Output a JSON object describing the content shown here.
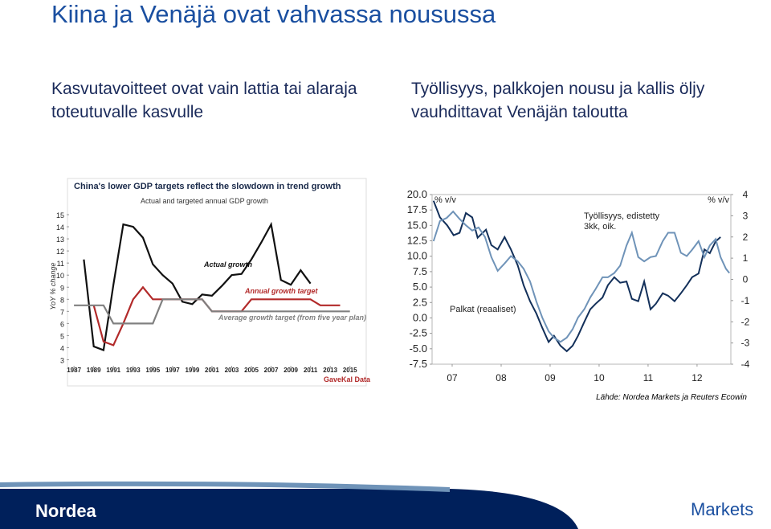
{
  "slide": {
    "title": "Kiina ja Venäjä ovat vahvassa nousussa",
    "left_text": [
      "Kasvutavoitteet ovat vain lattia tai alaraja",
      "toteutuvalle kasvulle"
    ],
    "right_text": [
      "Työllisyys, palkkojen nousu ja kallis öljy",
      "vauhdittavat Venäjän taloutta"
    ],
    "source": "Lähde: Nordea Markets ja Reuters Ecowin",
    "footer_left": "Nordea",
    "footer_right": "Markets"
  },
  "chart_data": [
    {
      "type": "line",
      "title": "China's lower GDP targets reflect the slowdown in trend growth",
      "subtitle": "Actual and targeted annual GDP growth",
      "ylabel": "YoY % change",
      "source": "GaveKal Data",
      "xlim": [
        1986.5,
        2016
      ],
      "ylim": [
        2.5,
        15.6
      ],
      "xticks": [
        1987,
        1989,
        1991,
        1993,
        1995,
        1997,
        1999,
        2001,
        2003,
        2005,
        2007,
        2009,
        2011,
        2013,
        2015
      ],
      "yticks": [
        3,
        4,
        5,
        6,
        7,
        8,
        9,
        10,
        11,
        12,
        13,
        14,
        15
      ],
      "series": [
        {
          "name": "Actual growth",
          "color": "#111111",
          "x": [
            1988,
            1989,
            1990,
            1991,
            1992,
            1993,
            1994,
            1995,
            1996,
            1997,
            1998,
            1999,
            2000,
            2001,
            2002,
            2003,
            2004,
            2005,
            2006,
            2007,
            2008,
            2009,
            2010,
            2011
          ],
          "values": [
            11.3,
            4.1,
            3.8,
            9.2,
            14.2,
            14.0,
            13.1,
            10.9,
            10.0,
            9.3,
            7.8,
            7.6,
            8.4,
            8.3,
            9.1,
            10.0,
            10.1,
            11.3,
            12.7,
            14.2,
            9.6,
            9.2,
            10.4,
            9.3
          ]
        },
        {
          "name": "Annual growth target",
          "color": "#b22a2a",
          "x": [
            1989,
            1990,
            1991,
            1992,
            1993,
            1994,
            1995,
            1996,
            1997,
            1998,
            1999,
            2000,
            2001,
            2002,
            2003,
            2004,
            2005,
            2006,
            2007,
            2008,
            2009,
            2010,
            2011,
            2012,
            2013,
            2014
          ],
          "values": [
            7.5,
            4.5,
            4.2,
            6,
            8,
            9,
            8,
            8,
            8,
            8,
            8,
            8,
            7,
            7,
            7,
            7,
            8,
            8,
            8,
            8,
            8,
            8,
            8,
            7.5,
            7.5,
            7.5
          ]
        },
        {
          "name": "Average growth target (from five year plan)",
          "color": "#808080",
          "x": [
            1987,
            1988,
            1989,
            1990,
            1991,
            1992,
            1993,
            1994,
            1995,
            1996,
            1997,
            1998,
            1999,
            2000,
            2001,
            2002,
            2003,
            2004,
            2005,
            2006,
            2007,
            2008,
            2009,
            2010,
            2011,
            2012,
            2013,
            2014,
            2015
          ],
          "values": [
            7.5,
            7.5,
            7.5,
            7.5,
            6,
            6,
            6,
            6,
            6,
            8,
            8,
            8,
            8,
            8,
            7,
            7,
            7,
            7,
            7,
            7,
            7,
            7,
            7,
            7,
            7,
            7,
            7,
            7,
            7
          ]
        }
      ]
    },
    {
      "type": "line",
      "ylabel": "% v/v",
      "y2label": "% v/v",
      "xlim": [
        2006.59,
        2012.69
      ],
      "ylim": [
        -7.5,
        20
      ],
      "y2lim": [
        -4,
        4
      ],
      "xticks": [
        {
          "value": 2007,
          "label": "07"
        },
        {
          "value": 2008,
          "label": "08"
        },
        {
          "value": 2009,
          "label": "09"
        },
        {
          "value": 2010,
          "label": "10"
        },
        {
          "value": 2011,
          "label": "11"
        },
        {
          "value": 2012,
          "label": "12"
        }
      ],
      "yticks": [
        {
          "value": 20,
          "label": "20.0"
        },
        17.5,
        {
          "value": 15,
          "label": "15.0"
        },
        12.5,
        {
          "value": 10,
          "label": "10.0"
        },
        7.5,
        {
          "value": 5,
          "label": "5.0"
        },
        2.5,
        {
          "value": 0,
          "label": "0.0"
        },
        -2.5,
        {
          "value": -5,
          "label": "-5.0"
        },
        -7.5
      ],
      "y2ticks": [
        4,
        3,
        2,
        1,
        0,
        -1,
        -2,
        -3,
        -4
      ],
      "series": [
        {
          "name": "Palkat (reaaliset)",
          "color": "#13305a",
          "x": [
            2006.62,
            2006.75,
            2006.9,
            2007.03,
            2007.15,
            2007.28,
            2007.41,
            2007.52,
            2007.69,
            2007.8,
            2007.93,
            2008.07,
            2008.2,
            2008.34,
            2008.46,
            2008.59,
            2008.72,
            2008.84,
            2008.97,
            2009.08,
            2009.21,
            2009.34,
            2009.46,
            2009.57,
            2009.7,
            2009.82,
            2009.93,
            2010.07,
            2010.18,
            2010.31,
            2010.43,
            2010.56,
            2010.67,
            2010.8,
            2010.92,
            2011.05,
            2011.16,
            2011.3,
            2011.41,
            2011.54,
            2011.67,
            2011.79,
            2011.9,
            2012.03,
            2012.15,
            2012.26,
            2012.38,
            2012.48
          ],
          "values": [
            19,
            16.3,
            15,
            13.4,
            13.8,
            17,
            16.3,
            13,
            14.3,
            11.8,
            11.1,
            13.1,
            11.1,
            8.5,
            5.3,
            2.7,
            0.7,
            -1.6,
            -3.9,
            -2.9,
            -4.5,
            -5.4,
            -4.5,
            -2.9,
            -0.6,
            1.4,
            2.3,
            3.3,
            5.3,
            6.6,
            5.7,
            5.9,
            3.1,
            2.7,
            5.9,
            1.4,
            2.3,
            4.0,
            3.6,
            2.7,
            4.0,
            5.3,
            6.6,
            7.2,
            11.1,
            10.5,
            12.4,
            13.1
          ]
        },
        {
          "name": "Työllisyys, edistetty 3kk, oik.",
          "color": "#6f93b8",
          "axis": "y2",
          "x": [
            2006.62,
            2006.75,
            2006.89,
            2007.02,
            2007.15,
            2007.28,
            2007.41,
            2007.54,
            2007.67,
            2007.8,
            2007.93,
            2008.07,
            2008.2,
            2008.34,
            2008.46,
            2008.59,
            2008.72,
            2008.84,
            2008.97,
            2009.08,
            2009.21,
            2009.34,
            2009.46,
            2009.57,
            2009.7,
            2009.82,
            2009.93,
            2010.07,
            2010.18,
            2010.31,
            2010.43,
            2010.56,
            2010.67,
            2010.8,
            2010.92,
            2011.05,
            2011.16,
            2011.3,
            2011.41,
            2011.54,
            2011.67,
            2011.79,
            2011.9,
            2012.03,
            2012.15,
            2012.26,
            2012.38,
            2012.48,
            2012.59,
            2012.66
          ],
          "values": [
            1.8,
            2.75,
            2.9,
            3.2,
            2.85,
            2.55,
            2.3,
            2.45,
            2.0,
            1.05,
            0.4,
            0.75,
            1.1,
            0.85,
            0.5,
            -0.1,
            -1.05,
            -1.8,
            -2.45,
            -2.75,
            -2.95,
            -2.75,
            -2.35,
            -1.8,
            -1.4,
            -0.85,
            -0.45,
            0.1,
            0.1,
            0.3,
            0.65,
            1.6,
            2.2,
            1.05,
            0.85,
            1.05,
            1.1,
            1.8,
            2.2,
            2.2,
            1.25,
            1.1,
            1.4,
            1.8,
            1.05,
            1.6,
            1.9,
            1.05,
            0.5,
            0.3
          ]
        }
      ]
    }
  ]
}
